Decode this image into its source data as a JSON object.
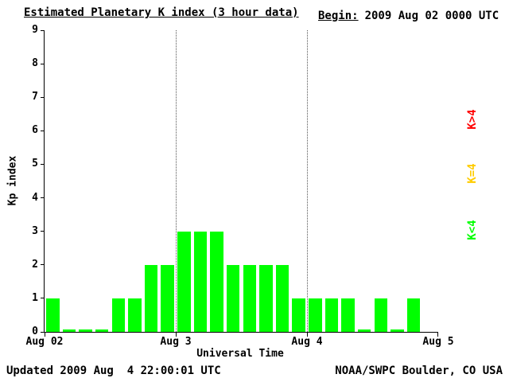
{
  "header": {
    "title": "Estimated Planetary K index (3 hour data)",
    "begin_label": "Begin:",
    "begin_value": "2009 Aug 02 0000 UTC"
  },
  "chart_data": {
    "type": "bar",
    "title": "Estimated Planetary K index (3 hour data)",
    "xlabel": "Universal Time",
    "ylabel": "Kp index",
    "ylim": [
      0,
      9
    ],
    "y_ticks": [
      0,
      1,
      2,
      3,
      4,
      5,
      6,
      7,
      8,
      9
    ],
    "days": 3,
    "bars_per_day": 8,
    "hours_per_bar": 3,
    "x_tick_labels": [
      "Aug 02",
      "Aug 3",
      "Aug 4",
      "Aug 5"
    ],
    "day_boundary_lines": [
      1,
      2
    ],
    "bar_color": "#00ff00",
    "values": [
      1,
      0,
      0,
      0,
      1,
      1,
      2,
      2,
      3,
      3,
      3,
      2,
      2,
      2,
      2,
      1,
      1,
      1,
      1,
      0,
      1,
      0,
      1
    ],
    "grid": "off",
    "legend_position": "right",
    "legend": [
      {
        "label": "K>4",
        "color": "#ff0000"
      },
      {
        "label": "K=4",
        "color": "#ffcc00"
      },
      {
        "label": "K<4",
        "color": "#00ff00"
      }
    ]
  },
  "footer": {
    "updated": "Updated 2009 Aug  4 22:00:01 UTC",
    "source": "NOAA/SWPC Boulder, CO USA"
  }
}
